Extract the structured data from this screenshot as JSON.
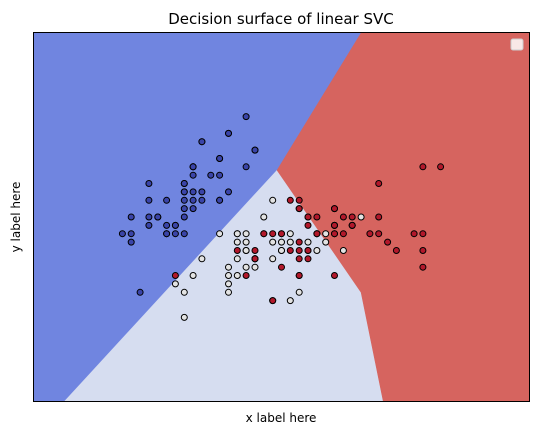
{
  "chart_data": {
    "type": "scatter",
    "title": "Decision surface of linear SVC",
    "xlabel": "x label here",
    "ylabel": "y label here",
    "ticks_visible": false,
    "grid": false,
    "legend": {
      "placement": "top-right",
      "entries": []
    },
    "xlim": [
      3.3,
      8.9
    ],
    "ylim": [
      1.0,
      5.4
    ],
    "region_colors": {
      "class_0": "#7085e0",
      "class_1": "#d6ddf0",
      "class_2": "#d6645f"
    },
    "regions": [
      {
        "name": "class_0",
        "polygon": [
          [
            3.3,
            1.0
          ],
          [
            3.3,
            5.4
          ],
          [
            7.0,
            5.4
          ],
          [
            6.05,
            3.76
          ],
          [
            3.65,
            1.0
          ]
        ]
      },
      {
        "name": "class_1",
        "polygon": [
          [
            3.65,
            1.0
          ],
          [
            6.05,
            3.76
          ],
          [
            7.0,
            2.3
          ],
          [
            7.25,
            1.0
          ]
        ]
      },
      {
        "name": "class_2",
        "polygon": [
          [
            7.0,
            5.4
          ],
          [
            8.9,
            5.4
          ],
          [
            8.9,
            1.0
          ],
          [
            7.25,
            1.0
          ],
          [
            7.0,
            2.3
          ],
          [
            6.05,
            3.76
          ]
        ]
      }
    ],
    "series": [
      {
        "color": "#3a44a8",
        "points": [
          [
            5.2,
            4.1
          ],
          [
            5.5,
            4.2
          ],
          [
            5.7,
            4.4
          ],
          [
            5.8,
            4.0
          ],
          [
            5.0,
            3.6
          ],
          [
            5.4,
            3.9
          ],
          [
            4.6,
            3.4
          ],
          [
            5.0,
            3.4
          ],
          [
            4.4,
            2.9
          ],
          [
            4.9,
            3.1
          ],
          [
            5.4,
            3.7
          ],
          [
            4.8,
            3.4
          ],
          [
            4.8,
            3.0
          ],
          [
            4.3,
            3.0
          ],
          [
            5.8,
            4.0
          ],
          [
            5.1,
            3.5
          ],
          [
            5.7,
            3.8
          ],
          [
            5.1,
            3.8
          ],
          [
            5.4,
            3.4
          ],
          [
            5.1,
            3.7
          ],
          [
            4.6,
            3.6
          ],
          [
            5.1,
            3.3
          ],
          [
            5.0,
            3.0
          ],
          [
            5.2,
            3.5
          ],
          [
            5.2,
            3.4
          ],
          [
            4.7,
            3.2
          ],
          [
            4.8,
            3.1
          ],
          [
            5.4,
            3.4
          ],
          [
            5.2,
            4.1
          ],
          [
            5.5,
            4.2
          ],
          [
            4.9,
            3.1
          ],
          [
            5.0,
            3.2
          ],
          [
            5.5,
            3.5
          ],
          [
            4.4,
            3.0
          ],
          [
            5.1,
            3.4
          ],
          [
            5.0,
            3.5
          ],
          [
            4.5,
            2.3
          ],
          [
            4.4,
            3.2
          ],
          [
            5.0,
            3.5
          ],
          [
            5.1,
            3.8
          ],
          [
            4.8,
            3.0
          ],
          [
            5.1,
            3.8
          ],
          [
            4.6,
            3.2
          ],
          [
            5.3,
            3.7
          ],
          [
            5.0,
            3.3
          ],
          [
            4.9,
            3.0
          ],
          [
            4.7,
            3.2
          ],
          [
            4.6,
            3.1
          ],
          [
            5.0,
            3.6
          ],
          [
            5.4,
            3.9
          ]
        ]
      },
      {
        "color": "#e3e3e3",
        "points": [
          [
            7.0,
            3.2
          ],
          [
            6.4,
            3.2
          ],
          [
            6.9,
            3.1
          ],
          [
            5.5,
            2.3
          ],
          [
            6.5,
            2.8
          ],
          [
            5.7,
            2.8
          ],
          [
            6.3,
            3.3
          ],
          [
            4.9,
            2.4
          ],
          [
            6.6,
            2.9
          ],
          [
            5.2,
            2.7
          ],
          [
            5.0,
            2.0
          ],
          [
            5.9,
            3.0
          ],
          [
            6.0,
            2.2
          ],
          [
            6.1,
            2.9
          ],
          [
            5.6,
            2.9
          ],
          [
            6.7,
            3.1
          ],
          [
            5.6,
            3.0
          ],
          [
            5.8,
            2.7
          ],
          [
            6.2,
            2.2
          ],
          [
            5.6,
            2.5
          ],
          [
            5.9,
            3.2
          ],
          [
            6.1,
            2.8
          ],
          [
            6.3,
            2.5
          ],
          [
            6.1,
            2.8
          ],
          [
            6.4,
            2.9
          ],
          [
            6.6,
            3.0
          ],
          [
            6.8,
            2.8
          ],
          [
            6.7,
            3.0
          ],
          [
            6.0,
            2.9
          ],
          [
            5.7,
            2.6
          ],
          [
            5.5,
            2.4
          ],
          [
            5.8,
            2.7
          ],
          [
            6.0,
            2.7
          ],
          [
            5.4,
            3.0
          ],
          [
            6.0,
            3.4
          ],
          [
            6.7,
            3.1
          ],
          [
            6.3,
            2.3
          ],
          [
            5.6,
            3.0
          ],
          [
            5.5,
            2.5
          ],
          [
            5.5,
            2.6
          ],
          [
            6.1,
            3.0
          ],
          [
            5.8,
            2.6
          ],
          [
            5.0,
            2.3
          ],
          [
            5.6,
            2.7
          ],
          [
            5.7,
            3.0
          ],
          [
            5.7,
            2.9
          ],
          [
            6.2,
            2.9
          ],
          [
            5.1,
            2.5
          ],
          [
            5.7,
            2.8
          ],
          [
            6.2,
            3.0
          ]
        ]
      },
      {
        "color": "#b2182b",
        "points": [
          [
            6.3,
            3.3
          ],
          [
            5.8,
            2.7
          ],
          [
            7.1,
            3.0
          ],
          [
            6.3,
            2.9
          ],
          [
            6.5,
            3.0
          ],
          [
            7.6,
            3.0
          ],
          [
            4.9,
            2.5
          ],
          [
            7.3,
            2.9
          ],
          [
            6.7,
            2.5
          ],
          [
            7.2,
            3.6
          ],
          [
            6.5,
            3.2
          ],
          [
            6.4,
            2.7
          ],
          [
            6.8,
            3.0
          ],
          [
            5.7,
            2.5
          ],
          [
            5.8,
            2.8
          ],
          [
            6.4,
            3.2
          ],
          [
            6.5,
            3.0
          ],
          [
            7.7,
            3.8
          ],
          [
            7.7,
            2.6
          ],
          [
            6.0,
            2.2
          ],
          [
            6.9,
            3.2
          ],
          [
            5.6,
            2.8
          ],
          [
            7.7,
            2.8
          ],
          [
            6.3,
            2.7
          ],
          [
            6.7,
            3.3
          ],
          [
            7.2,
            3.2
          ],
          [
            6.2,
            2.8
          ],
          [
            6.1,
            3.0
          ],
          [
            6.4,
            2.8
          ],
          [
            7.2,
            3.0
          ],
          [
            7.4,
            2.8
          ],
          [
            7.9,
            3.8
          ],
          [
            6.4,
            2.8
          ],
          [
            6.3,
            2.8
          ],
          [
            6.1,
            2.6
          ],
          [
            7.7,
            3.0
          ],
          [
            6.3,
            3.4
          ],
          [
            6.4,
            3.1
          ],
          [
            6.0,
            3.0
          ],
          [
            6.9,
            3.1
          ],
          [
            6.7,
            3.1
          ],
          [
            6.9,
            3.1
          ],
          [
            5.8,
            2.7
          ],
          [
            6.8,
            3.2
          ],
          [
            6.7,
            3.3
          ],
          [
            6.7,
            3.0
          ],
          [
            6.3,
            2.5
          ],
          [
            6.5,
            3.0
          ],
          [
            6.2,
            3.4
          ],
          [
            5.9,
            3.0
          ]
        ]
      }
    ]
  }
}
